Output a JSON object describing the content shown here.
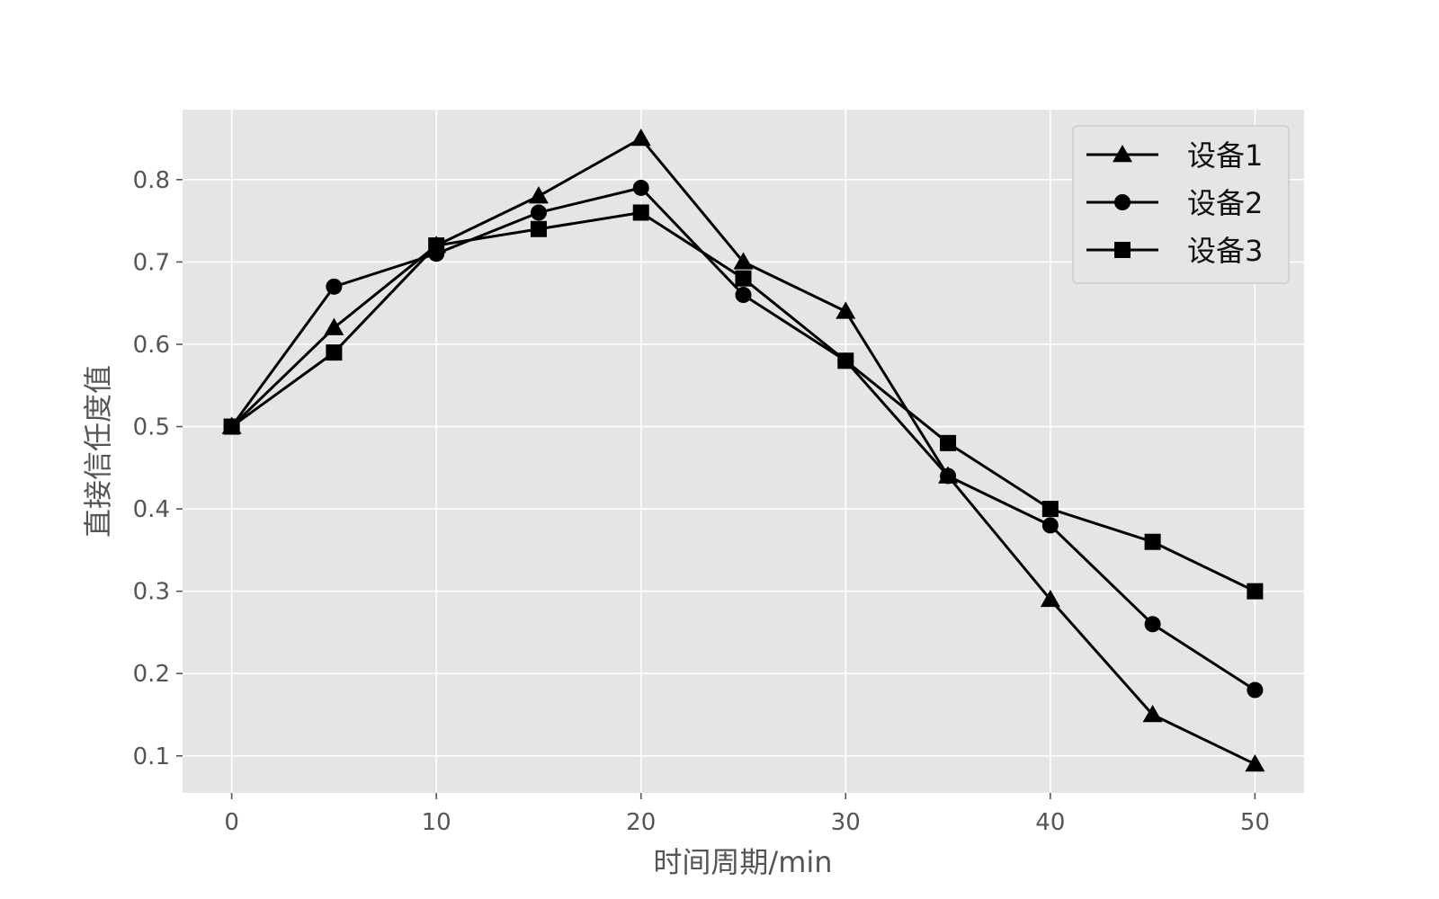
{
  "chart_data": {
    "type": "line",
    "xlabel": "时间周期/min",
    "ylabel": "直接信任度值",
    "xlim": [
      -2.4,
      52.4
    ],
    "ylim": [
      0.055,
      0.885
    ],
    "x_ticks": [
      0,
      10,
      20,
      30,
      40,
      50
    ],
    "y_ticks": [
      0.1,
      0.2,
      0.3,
      0.4,
      0.5,
      0.6,
      0.7,
      0.8
    ],
    "x": [
      0,
      5,
      10,
      15,
      20,
      25,
      30,
      35,
      40,
      45,
      50
    ],
    "grid": true,
    "legend_position": "top-right",
    "colors": {
      "plot_bg": "#e5e5e5",
      "grid": "#ffffff",
      "line": "#000000"
    },
    "series": [
      {
        "name": "设备1",
        "marker": "triangle",
        "values": [
          0.5,
          0.62,
          0.72,
          0.78,
          0.85,
          0.7,
          0.64,
          0.44,
          0.29,
          0.15,
          0.09
        ]
      },
      {
        "name": "设备2",
        "marker": "circle",
        "values": [
          0.5,
          0.67,
          0.71,
          0.76,
          0.79,
          0.66,
          0.58,
          0.44,
          0.38,
          0.26,
          0.18
        ]
      },
      {
        "name": "设备3",
        "marker": "square",
        "values": [
          0.5,
          0.59,
          0.72,
          0.74,
          0.76,
          0.68,
          0.58,
          0.48,
          0.4,
          0.36,
          0.3
        ]
      }
    ]
  }
}
